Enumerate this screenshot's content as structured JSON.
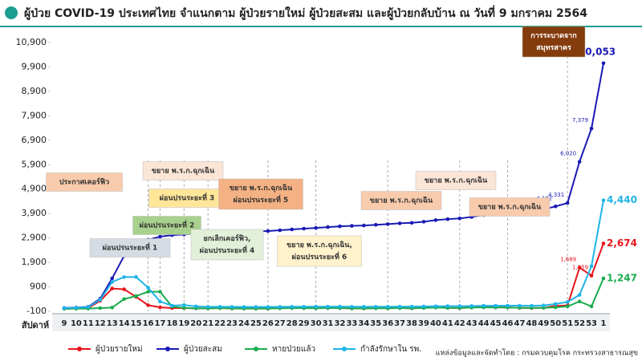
{
  "chart_data": {
    "type": "line",
    "title": "ผู้ป่วย COVID-19 ประเทศไทย จำแนกตาม ผู้ป่วยรายใหม่ ผู้ป่วยสะสม และผู้ป่วยกลับบ้าน  ณ วันที่ 9 มกราคม 2564",
    "x_label": "สัปดาห์",
    "categories": [
      "9",
      "10",
      "11",
      "12",
      "13",
      "14",
      "15",
      "16",
      "17",
      "18",
      "19",
      "20",
      "21",
      "22",
      "23",
      "24",
      "25",
      "26",
      "27",
      "28",
      "29",
      "30",
      "31",
      "32",
      "33",
      "34",
      "35",
      "36",
      "37",
      "38",
      "39",
      "40",
      "41",
      "42",
      "43",
      "44",
      "45",
      "46",
      "47",
      "48",
      "49",
      "50",
      "51",
      "52",
      "53",
      "1"
    ],
    "ylim": [
      -100,
      10900
    ],
    "yticks": [
      -100,
      900,
      {
        "value": 1900,
        "label": "1,900"
      },
      {
        "value": 2900,
        "label": "2,900"
      },
      {
        "value": 3900,
        "label": "3,900"
      },
      {
        "value": 4900,
        "label": "4,900"
      },
      {
        "value": 5900,
        "label": "5,900"
      },
      {
        "value": 6900,
        "label": "6,900"
      },
      {
        "value": 7900,
        "label": "7,900"
      },
      {
        "value": 8900,
        "label": "8,900"
      },
      {
        "value": 9900,
        "label": "9,900"
      },
      {
        "value": 10900,
        "label": "10,900"
      }
    ],
    "grid": false,
    "series": [
      {
        "name": "ผู้ป่วยรายใหม่",
        "color": "#e8141b",
        "values": [
          5,
          20,
          30,
          330,
          830,
          800,
          490,
          150,
          60,
          30,
          30,
          20,
          20,
          30,
          15,
          10,
          10,
          12,
          30,
          35,
          30,
          30,
          33,
          33,
          17,
          16,
          28,
          26,
          35,
          20,
          45,
          65,
          40,
          30,
          60,
          80,
          60,
          60,
          40,
          30,
          42,
          120,
          139,
          1689,
          1359,
          2674
        ],
        "value_labels": [
          null,
          null,
          null,
          null,
          null,
          null,
          null,
          null,
          null,
          null,
          null,
          null,
          null,
          null,
          null,
          null,
          null,
          null,
          null,
          null,
          null,
          null,
          null,
          null,
          null,
          null,
          null,
          null,
          null,
          null,
          null,
          null,
          null,
          null,
          null,
          null,
          null,
          null,
          null,
          null,
          null,
          null,
          null,
          "1,689",
          "1,359",
          "2,674"
        ]
      },
      {
        "name": "ผู้ป่วยสะสม",
        "color": "#1a1ab5",
        "values": [
          35,
          50,
          82,
          411,
          1245,
          2169,
          2579,
          2826,
          2954,
          3017,
          3042,
          3081,
          3104,
          3135,
          3151,
          3162,
          3173,
          3185,
          3216,
          3250,
          3282,
          3312,
          3345,
          3378,
          3395,
          3411,
          3439,
          3465,
          3500,
          3520,
          3565,
          3630,
          3670,
          3700,
          3760,
          3840,
          3900,
          3960,
          4000,
          4030,
          4072,
          4192,
          4331,
          6020,
          7379,
          10053
        ],
        "value_labels": [
          null,
          null,
          null,
          null,
          null,
          null,
          null,
          null,
          null,
          null,
          null,
          null,
          null,
          null,
          null,
          null,
          null,
          null,
          null,
          null,
          null,
          null,
          null,
          null,
          null,
          null,
          null,
          null,
          null,
          null,
          null,
          null,
          null,
          null,
          null,
          null,
          null,
          null,
          null,
          null,
          "4,072",
          "4,192",
          "4,331",
          "6,020",
          "7,379",
          "10,053"
        ]
      },
      {
        "name": "หายป่วยแล้ว",
        "color": "#1aab4f",
        "values": [
          1,
          5,
          10,
          30,
          50,
          400,
          523,
          700,
          700,
          90,
          40,
          20,
          20,
          30,
          20,
          15,
          10,
          15,
          25,
          30,
          30,
          25,
          30,
          30,
          20,
          20,
          25,
          25,
          30,
          25,
          35,
          50,
          40,
          35,
          50,
          60,
          55,
          55,
          45,
          40,
          45,
          60,
          100,
          300,
          100,
          1247
        ],
        "value_labels": [
          null,
          null,
          null,
          null,
          null,
          null,
          null,
          null,
          null,
          null,
          null,
          null,
          null,
          null,
          null,
          null,
          null,
          null,
          null,
          null,
          null,
          null,
          null,
          null,
          null,
          null,
          null,
          null,
          null,
          null,
          null,
          null,
          null,
          null,
          null,
          null,
          null,
          null,
          null,
          null,
          null,
          null,
          null,
          null,
          null,
          "1,247"
        ]
      },
      {
        "name": "กำลังรักษาใน รพ.",
        "color": "#1eb4e8",
        "values": [
          30,
          45,
          70,
          370,
          1100,
          1300,
          1305,
          866,
          300,
          130,
          153,
          100,
          80,
          85,
          80,
          75,
          75,
          75,
          80,
          85,
          85,
          90,
          90,
          90,
          85,
          85,
          85,
          85,
          90,
          90,
          95,
          105,
          110,
          110,
          115,
          125,
          125,
          130,
          130,
          125,
          140,
          200,
          280,
          569,
          1751,
          4440
        ],
        "value_labels": [
          null,
          null,
          null,
          null,
          null,
          null,
          null,
          null,
          null,
          null,
          null,
          null,
          null,
          null,
          null,
          null,
          null,
          null,
          null,
          null,
          null,
          null,
          null,
          null,
          null,
          null,
          null,
          null,
          null,
          null,
          null,
          null,
          null,
          null,
          null,
          null,
          null,
          null,
          null,
          null,
          null,
          null,
          null,
          null,
          null,
          "4,440"
        ]
      }
    ],
    "annotations": [
      [
        "ประกาศเคอร์ฟิว"
      ],
      [
        "ผ่อนปรนระยะที่ 1"
      ],
      [
        "ผ่อนปรนระยะที่ 2"
      ],
      [
        "ขยาย พ.ร.ก.ฉุกเฉิน"
      ],
      [
        "ผ่อนปรนระยะที่ 3"
      ],
      [
        "ขยาย พ.ร.ก.ฉุกเฉิน",
        "ผ่อนปรนระยะที่ 5"
      ],
      [
        "ยกเลิกเคอร์ฟิว,",
        "ผ่อนปรนระยะที่ 4"
      ],
      [
        "ขยาย พ.ร.ก.ฉุกเฉิน,",
        "ผ่อนปรนระยะที่ 6"
      ],
      [
        "ขยาย พ.ร.ก.ฉุกเฉิน"
      ],
      [
        "ขยาย พ.ร.ก.ฉุกเฉิน"
      ],
      [
        "ขยาย พ.ร.ก.ฉุกเฉิน"
      ],
      [
        "การระบาดจาก",
        "สมุทรสาคร"
      ]
    ],
    "source": "แหล่งข้อมูลและจัดทำโดย : กรมควบคุมโรค กระทรวงสาธารณสุข"
  }
}
